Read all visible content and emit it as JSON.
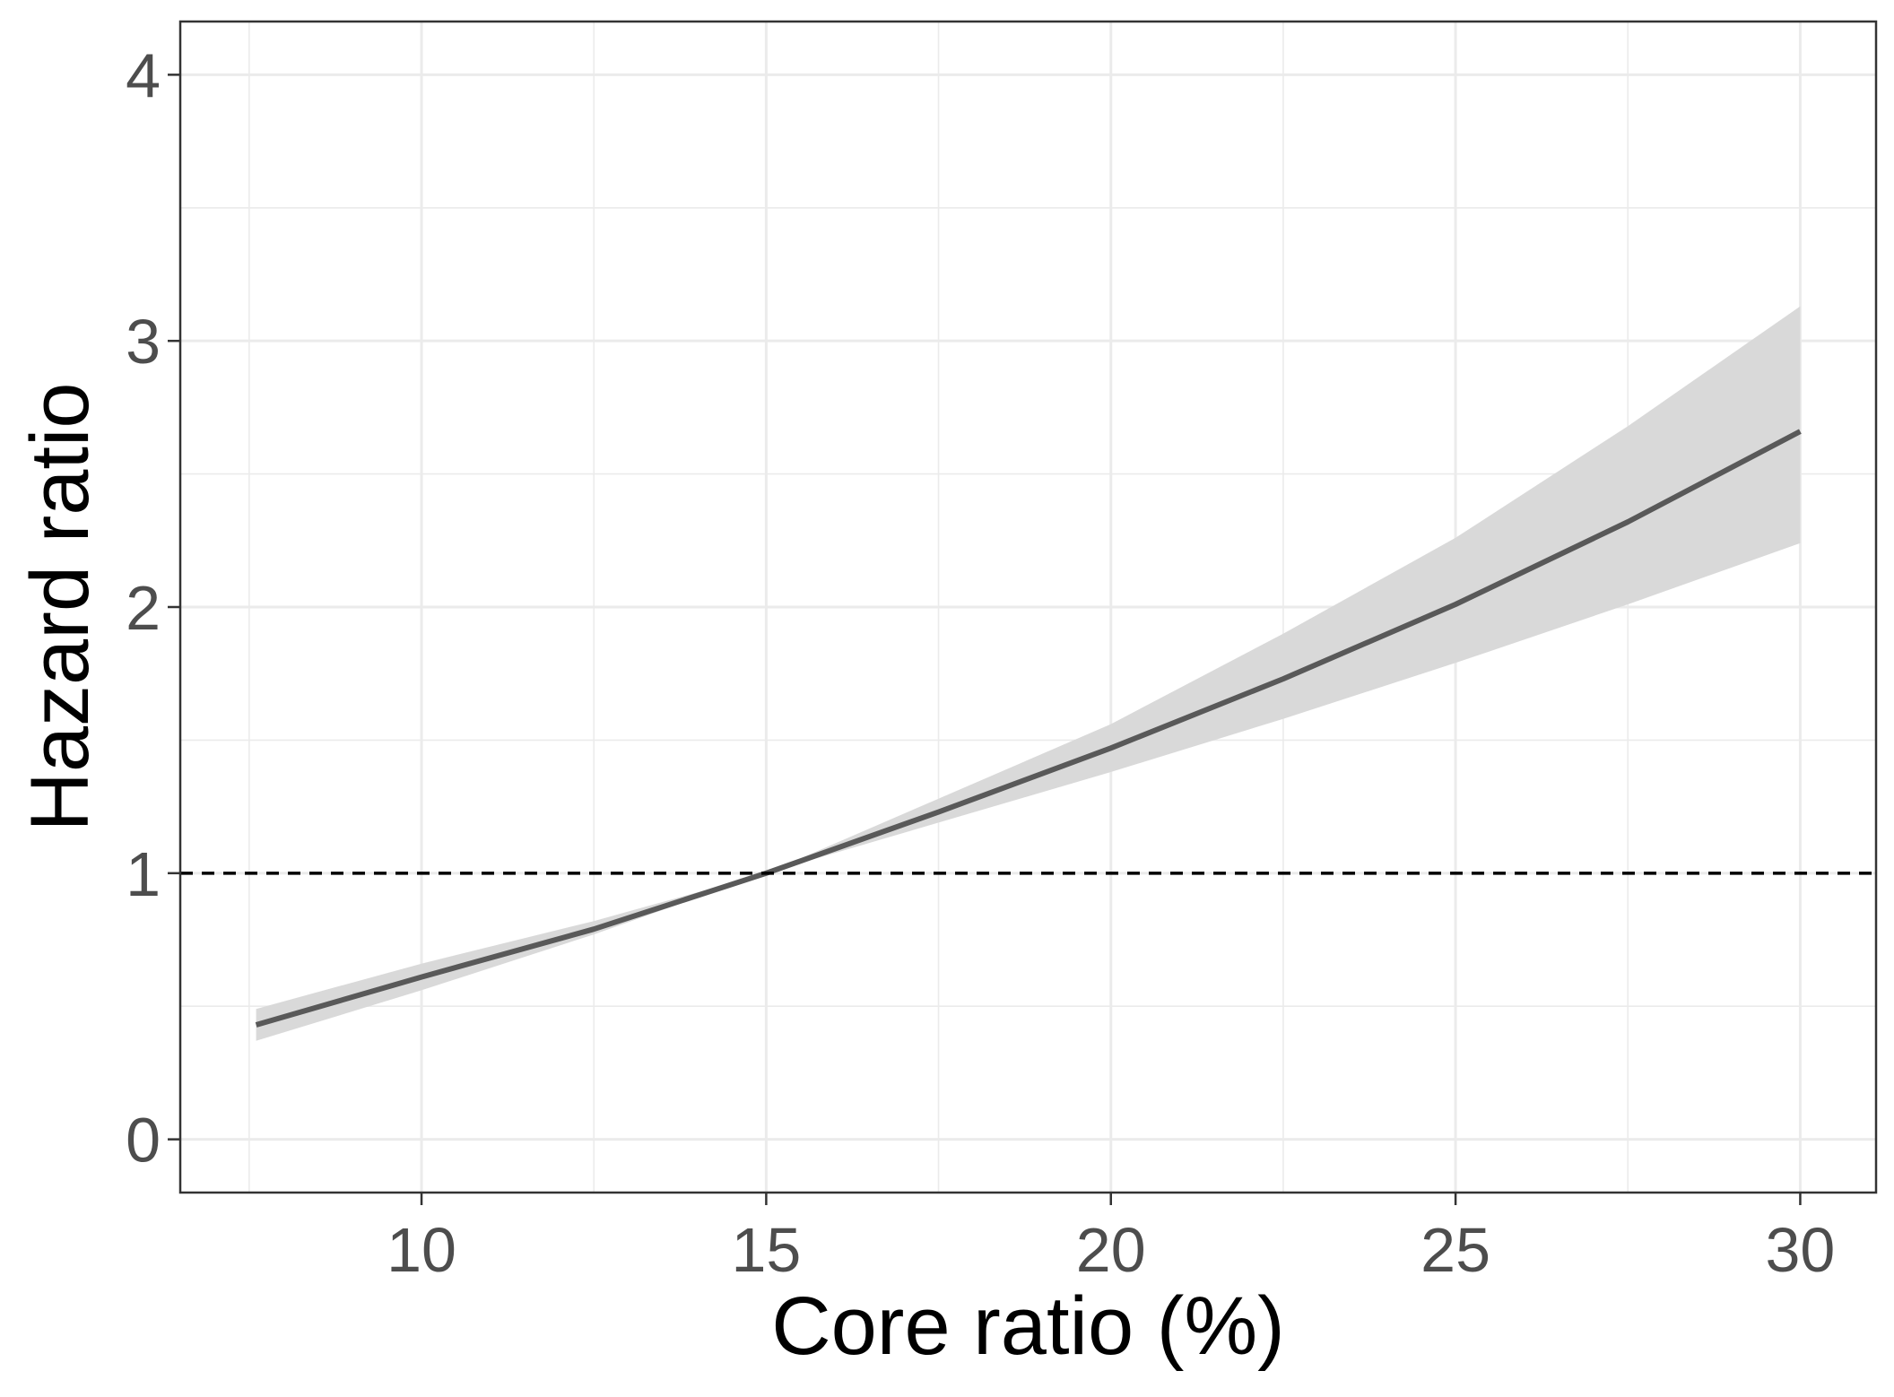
{
  "chart_data": {
    "type": "line",
    "title": "",
    "xlabel": "Core ratio (%)",
    "ylabel": "Hazard ratio",
    "xlim": [
      6.5,
      31.1
    ],
    "ylim": [
      -0.2,
      4.2
    ],
    "x_ticks": [
      10,
      15,
      20,
      25,
      30
    ],
    "y_ticks": [
      0,
      1,
      2,
      3,
      4
    ],
    "grid": true,
    "legend": "none",
    "reference_line": {
      "y": 1,
      "style": "dashed"
    },
    "series": [
      {
        "x": [
          7.6,
          10,
          12.5,
          15,
          17.5,
          20,
          22.5,
          25,
          27.5,
          30
        ],
        "y": [
          0.43,
          0.61,
          0.79,
          1.0,
          1.23,
          1.47,
          1.73,
          2.01,
          2.32,
          2.66
        ],
        "ci_lower": [
          0.37,
          0.56,
          0.77,
          1.0,
          1.19,
          1.38,
          1.58,
          1.79,
          2.01,
          2.24
        ],
        "ci_upper": [
          0.49,
          0.66,
          0.82,
          1.0,
          1.28,
          1.56,
          1.9,
          2.26,
          2.68,
          3.13
        ]
      }
    ],
    "colors": {
      "line": "#595959",
      "ribbon": "#d9d9d9",
      "grid": "#ebebeb",
      "reference": "#000000",
      "panel_border": "#333333"
    }
  }
}
